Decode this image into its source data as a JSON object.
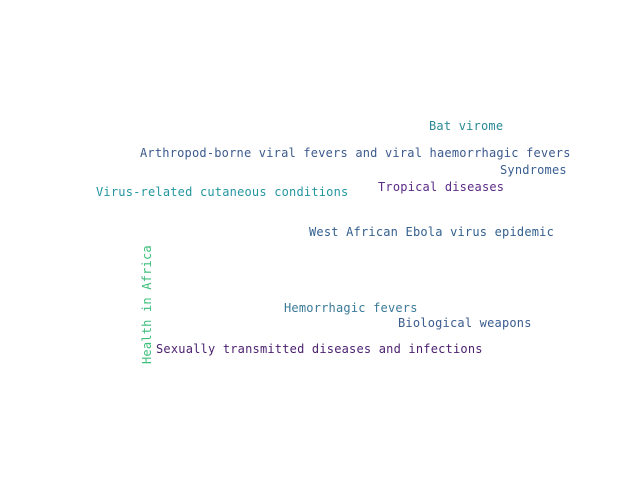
{
  "words": [
    {
      "text": "Bat virome",
      "color": "#2a8a96"
    },
    {
      "text": "Arthropod-borne viral fevers and viral haemorrhagic fevers",
      "color": "#3c5a8e"
    },
    {
      "text": "Syndromes",
      "color": "#3a5f90"
    },
    {
      "text": "Tropical diseases",
      "color": "#5b2a86"
    },
    {
      "text": "Virus-related cutaneous conditions",
      "color": "#2596a0"
    },
    {
      "text": "West African Ebola virus epidemic",
      "color": "#34608f"
    },
    {
      "text": "Health in Africa",
      "color": "#3dbf7a"
    },
    {
      "text": "Hemorrhagic fevers",
      "color": "#3a7a98"
    },
    {
      "text": "Biological weapons",
      "color": "#3b5c8f"
    },
    {
      "text": "Sexually transmitted diseases and infections",
      "color": "#4a1f6e"
    }
  ]
}
